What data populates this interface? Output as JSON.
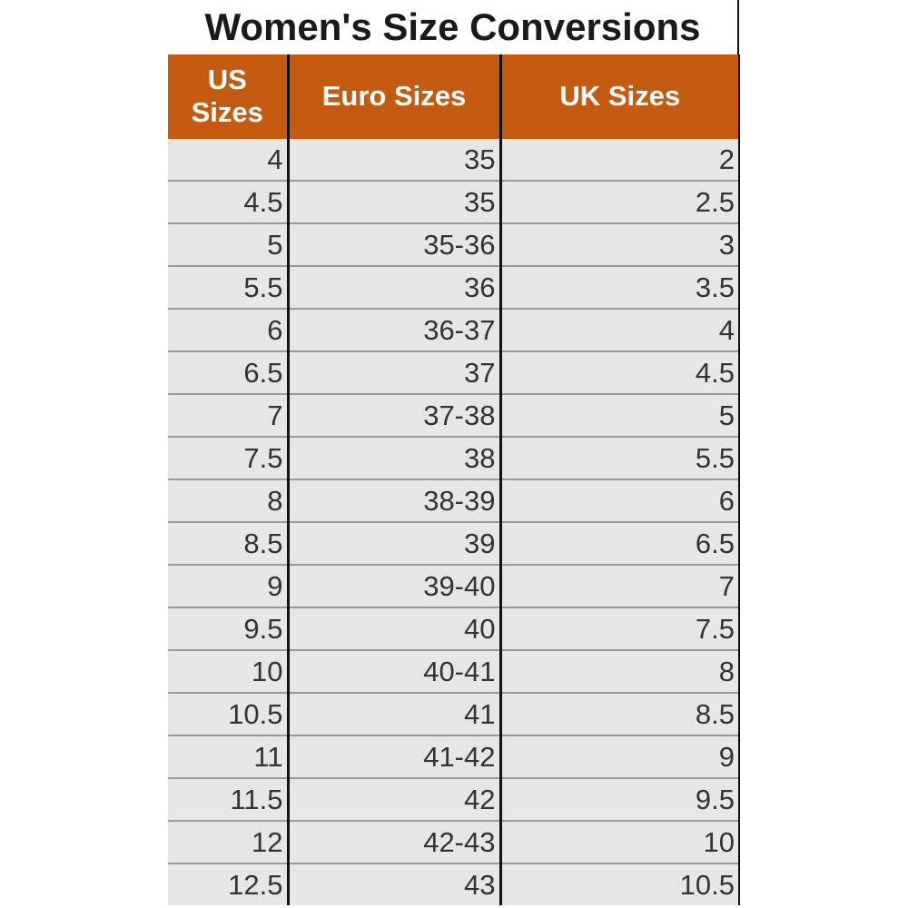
{
  "title": "Women's Size Conversions",
  "headers": [
    "US Sizes",
    "Euro Sizes",
    "UK Sizes"
  ],
  "rows": [
    [
      "4",
      "35",
      "2"
    ],
    [
      "4.5",
      "35",
      "2.5"
    ],
    [
      "5",
      "35-36",
      "3"
    ],
    [
      "5.5",
      "36",
      "3.5"
    ],
    [
      "6",
      "36-37",
      "4"
    ],
    [
      "6.5",
      "37",
      "4.5"
    ],
    [
      "7",
      "37-38",
      "5"
    ],
    [
      "7.5",
      "38",
      "5.5"
    ],
    [
      "8",
      "38-39",
      "6"
    ],
    [
      "8.5",
      "39",
      "6.5"
    ],
    [
      "9",
      "39-40",
      "7"
    ],
    [
      "9.5",
      "40",
      "7.5"
    ],
    [
      "10",
      "40-41",
      "8"
    ],
    [
      "10.5",
      "41",
      "8.5"
    ],
    [
      "11",
      "41-42",
      "9"
    ],
    [
      "11.5",
      "42",
      "9.5"
    ],
    [
      "12",
      "42-43",
      "10"
    ],
    [
      "12.5",
      "43",
      "10.5"
    ]
  ],
  "colors": {
    "header_bg": "#c55a11",
    "header_text": "#ffffff",
    "cell_bg": "#e7e6e6",
    "cell_text": "#333333"
  }
}
